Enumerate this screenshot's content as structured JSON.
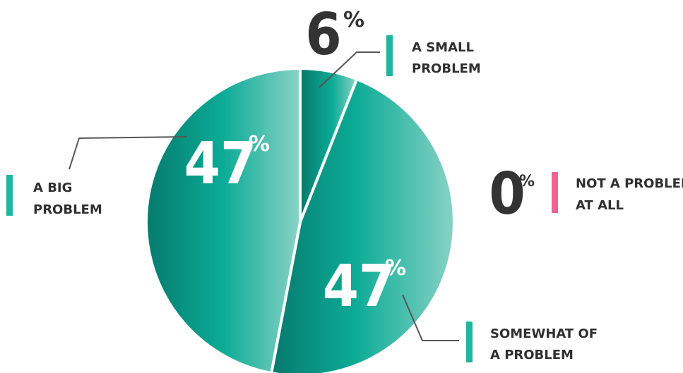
{
  "chart_data": {
    "type": "pie",
    "slices": [
      {
        "label_lines": [
          "A SMALL",
          "PROBLEM"
        ],
        "value": 6,
        "value_text": "6",
        "marker_color": "#1fb5a0"
      },
      {
        "label_lines": [
          "SOMEWHAT OF",
          "A PROBLEM"
        ],
        "value": 47,
        "value_text": "47",
        "marker_color": "#1fb5a0"
      },
      {
        "label_lines": [
          "A BIG",
          "PROBLEM"
        ],
        "value": 47,
        "value_text": "47",
        "marker_color": "#1fb5a0"
      }
    ],
    "zero_entry": {
      "label_lines": [
        "NOT A PROBLEM",
        "AT ALL"
      ],
      "value": 0,
      "value_text": "0",
      "marker_color": "#f06292"
    },
    "percent_symbol": "%",
    "colors": {
      "slice_dark": "#067a6d",
      "slice_mid": "#0bab96",
      "slice_light": "#8ad3c6",
      "text": "#333333",
      "leader_line": "#555555"
    }
  }
}
